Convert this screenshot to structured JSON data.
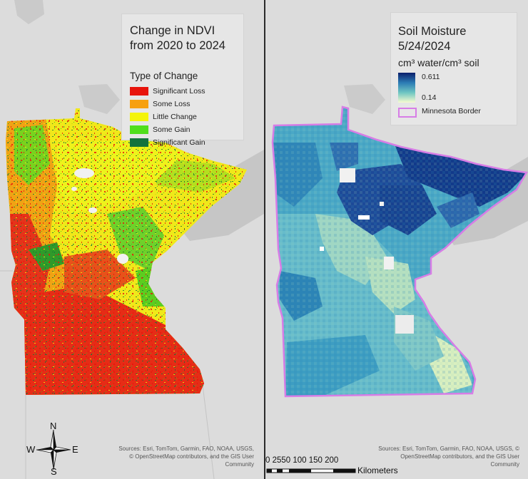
{
  "ndvi_map": {
    "legend": {
      "title_line1": "Change in NDVI",
      "title_line2": "from 2020 to 2024",
      "subtitle": "Type of Change",
      "items": [
        {
          "label": "Significant Loss",
          "color": "#e8140c"
        },
        {
          "label": "Some Loss",
          "color": "#f7a00f"
        },
        {
          "label": "Little Change",
          "color": "#f4f40a"
        },
        {
          "label": "Some Gain",
          "color": "#4fdf1b"
        },
        {
          "label": "Significant Gain",
          "color": "#13733c"
        }
      ]
    },
    "attribution": "Sources: Esri, TomTom, Garmin, FAO, NOAA, USGS, © OpenStreetMap contributors, and the GIS User Community",
    "compass": {
      "north": "N",
      "south": "S",
      "east": "E",
      "west": "W"
    }
  },
  "soil_map": {
    "legend": {
      "title_line1": "Soil Moisture",
      "title_line2": "5/24/2024",
      "unit": "cm³ water/cm³ soil",
      "max_label": "0.611",
      "min_label": "0.14",
      "border_label": "Minnesota Border",
      "ramp_colors": [
        "#0b1f6c",
        "#2b7bb4",
        "#6fc6c2",
        "#f6fbcf"
      ],
      "border_color": "#d77de6"
    },
    "attribution": "Sources: Esri, TomTom, Garmin, FAO, NOAA, USGS, © OpenStreetMap contributors, and the GIS User Community",
    "scalebar": {
      "ticks": "0 2550   100  150  200",
      "unit": "Kilometers"
    }
  },
  "colors": {
    "basemap": "#dcdcdc",
    "lake": "#bdbdbd",
    "divider": "#2a2a2a"
  }
}
